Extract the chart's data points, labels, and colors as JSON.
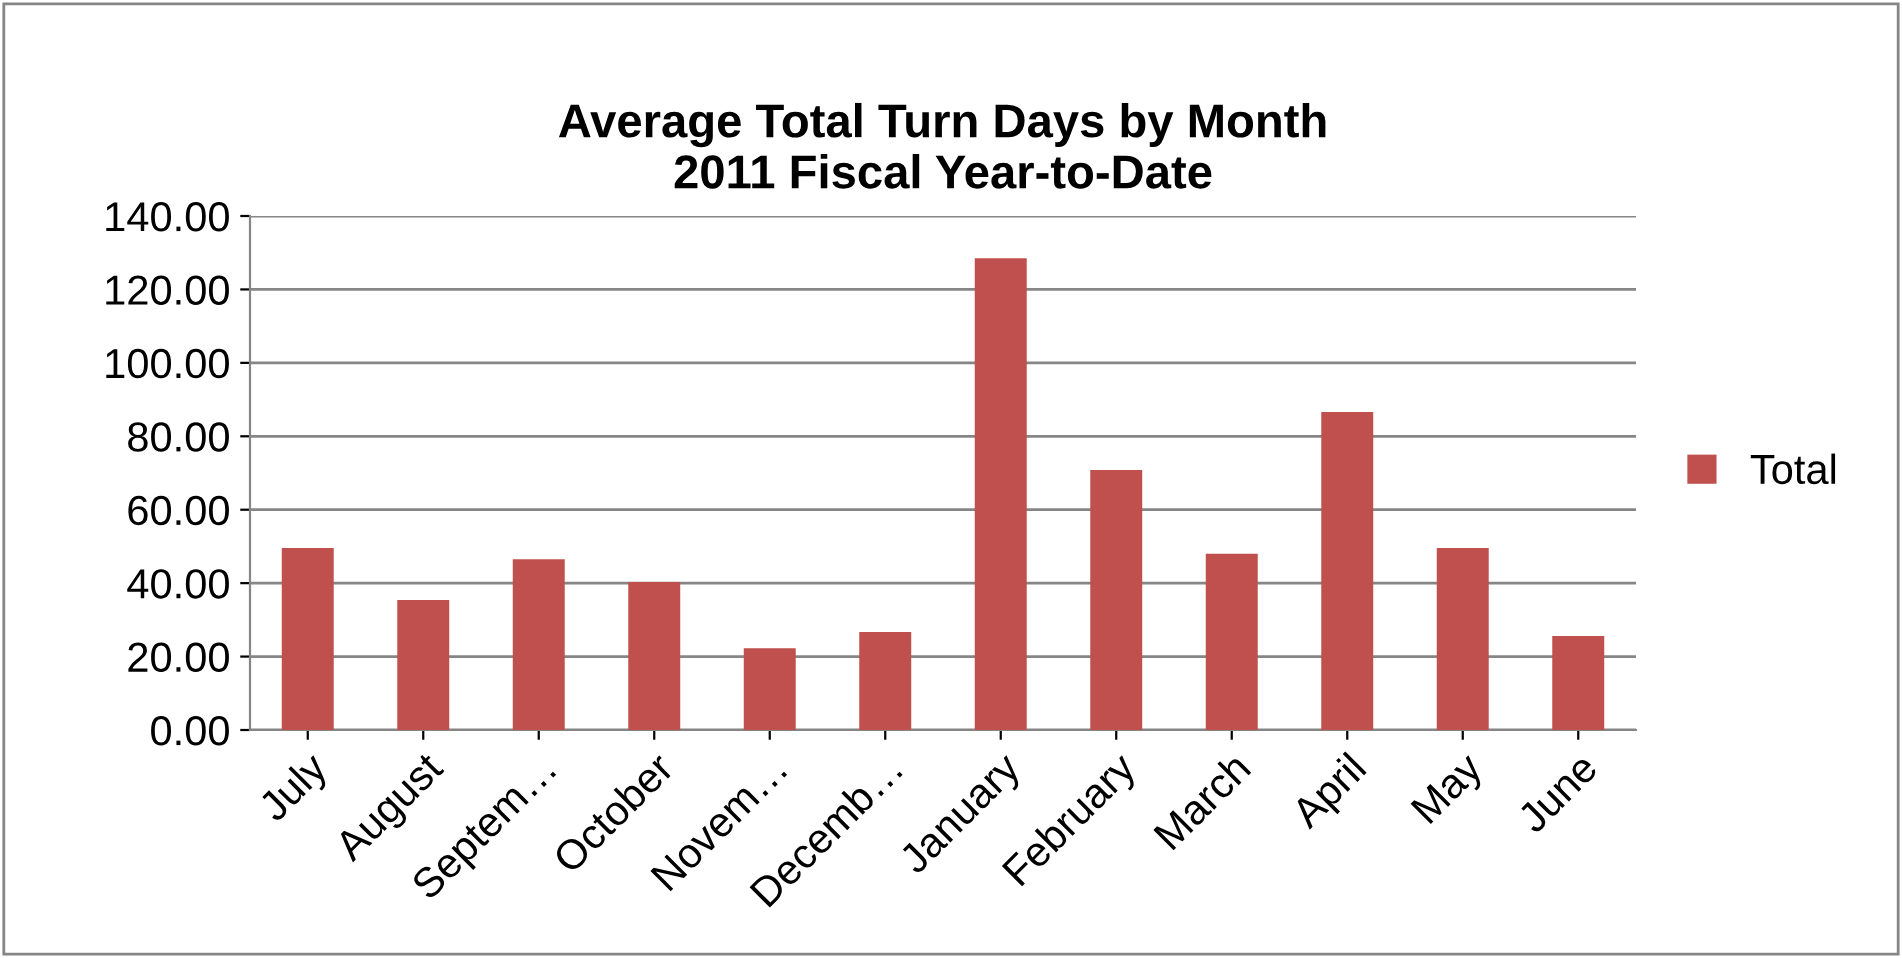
{
  "chart_data": {
    "type": "bar",
    "title": "Average Total Turn Days by Month\n2011 Fiscal Year-to-Date",
    "categories": [
      "July",
      "August",
      "Septem…",
      "October",
      "Novem…",
      "Decemb…",
      "January",
      "February",
      "March",
      "April",
      "May",
      "June"
    ],
    "series": [
      {
        "name": "Total",
        "color": "#c0504d",
        "values": [
          49.6,
          35.4,
          46.5,
          40.3,
          22.3,
          26.7,
          128.5,
          70.8,
          48.0,
          86.6,
          49.6,
          25.6
        ]
      }
    ],
    "ylim": [
      0,
      140
    ],
    "yticks": [
      {
        "value": 0,
        "label": "0.00"
      },
      {
        "value": 20,
        "label": "20.00"
      },
      {
        "value": 40,
        "label": "40.00"
      },
      {
        "value": 60,
        "label": "60.00"
      },
      {
        "value": 80,
        "label": "80.00"
      },
      {
        "value": 100,
        "label": "100.00"
      },
      {
        "value": 120,
        "label": "120.00"
      },
      {
        "value": 140,
        "label": "140.00"
      }
    ],
    "grid": "y",
    "legend": "right"
  }
}
